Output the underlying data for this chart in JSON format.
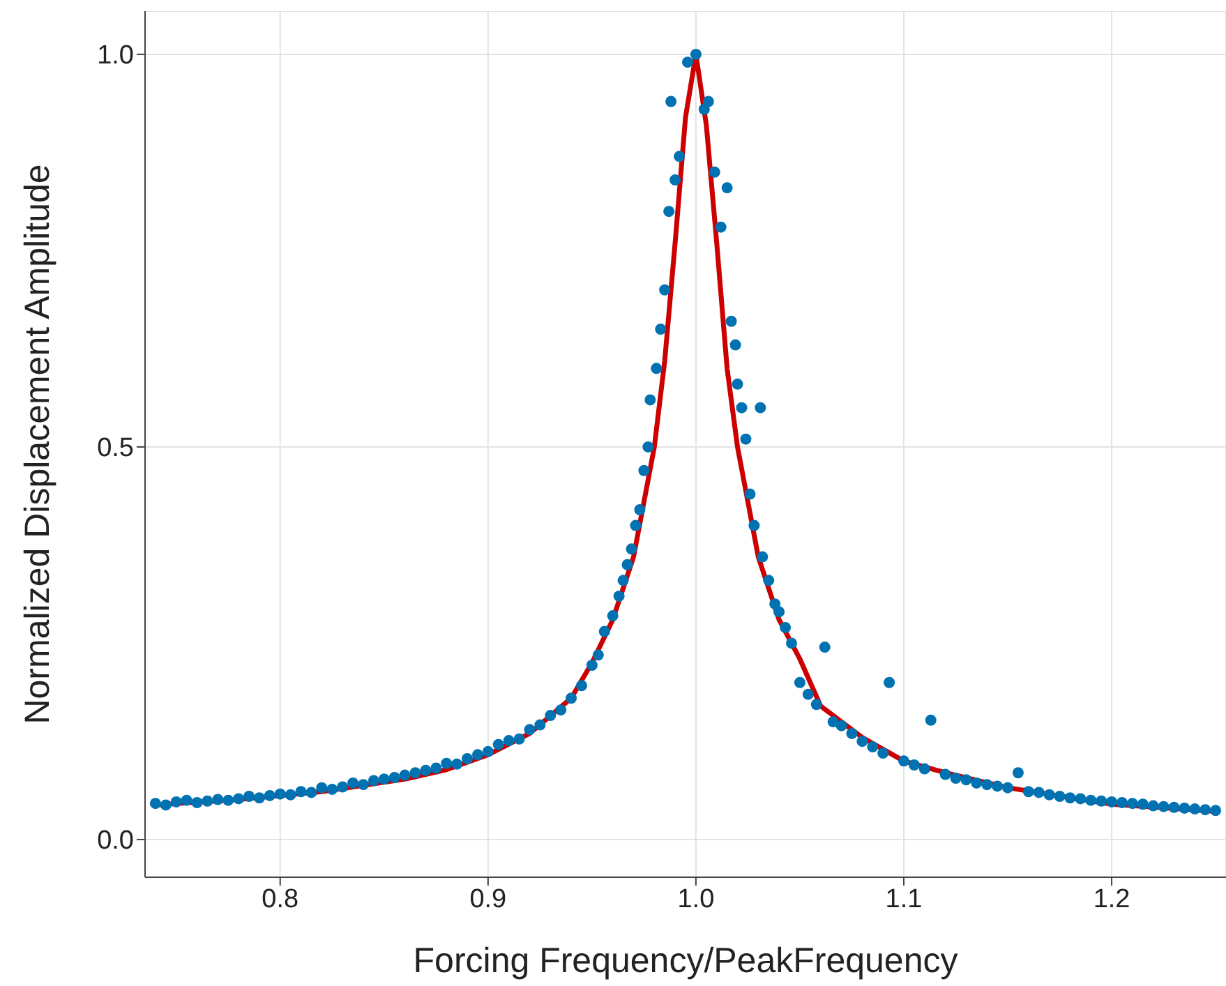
{
  "chart_data": {
    "type": "scatter",
    "xlabel": "Forcing Frequency/PeakFrequency",
    "ylabel": "Normalized Displacement Amplitude",
    "xlim": [
      0.735,
      1.255
    ],
    "ylim": [
      -0.048,
      1.055
    ],
    "xticks": [
      0.8,
      0.9,
      {
        "value": 1.0,
        "label": "1.0"
      },
      1.1,
      1.2
    ],
    "yticks": [
      {
        "value": 0,
        "label": "0.0"
      },
      {
        "value": 0.5,
        "label": "0.5"
      },
      {
        "value": 1.0,
        "label": "1.0"
      }
    ],
    "grid": true,
    "marker": "circle",
    "series": [
      {
        "type": "scatter",
        "color": "#0072b2",
        "x": [
          0.74,
          0.745,
          0.75,
          0.755,
          0.76,
          0.765,
          0.77,
          0.775,
          0.78,
          0.785,
          0.79,
          0.795,
          0.8,
          0.805,
          0.81,
          0.815,
          0.82,
          0.825,
          0.83,
          0.835,
          0.84,
          0.845,
          0.85,
          0.855,
          0.86,
          0.865,
          0.87,
          0.875,
          0.88,
          0.885,
          0.89,
          0.895,
          0.9,
          0.905,
          0.91,
          0.915,
          0.92,
          0.925,
          0.93,
          0.935,
          0.94,
          0.945,
          0.95,
          0.953,
          0.956,
          0.96,
          0.963,
          0.965,
          0.967,
          0.969,
          0.971,
          0.973,
          0.975,
          0.977,
          0.978,
          0.981,
          0.983,
          0.985,
          0.987,
          0.988,
          0.99,
          0.992,
          0.996,
          1.0,
          1.004,
          1.006,
          1.009,
          1.012,
          1.015,
          1.017,
          1.019,
          1.02,
          1.022,
          1.024,
          1.026,
          1.028,
          1.031,
          1.032,
          1.035,
          1.038,
          1.04,
          1.043,
          1.046,
          1.05,
          1.054,
          1.058,
          1.062,
          1.066,
          1.07,
          1.075,
          1.08,
          1.085,
          1.09,
          1.093,
          1.1,
          1.105,
          1.11,
          1.113,
          1.12,
          1.125,
          1.13,
          1.135,
          1.14,
          1.145,
          1.15,
          1.155,
          1.16,
          1.165,
          1.17,
          1.175,
          1.18,
          1.185,
          1.19,
          1.195,
          1.2,
          1.205,
          1.21,
          1.215,
          1.22,
          1.225,
          1.23,
          1.235,
          1.24,
          1.245,
          1.25
        ],
        "values": [
          0.046,
          0.044,
          0.048,
          0.05,
          0.047,
          0.049,
          0.051,
          0.05,
          0.052,
          0.055,
          0.053,
          0.056,
          0.058,
          0.057,
          0.061,
          0.06,
          0.066,
          0.064,
          0.067,
          0.072,
          0.07,
          0.075,
          0.077,
          0.079,
          0.082,
          0.085,
          0.088,
          0.091,
          0.097,
          0.096,
          0.103,
          0.108,
          0.112,
          0.121,
          0.126,
          0.128,
          0.14,
          0.146,
          0.158,
          0.165,
          0.18,
          0.196,
          0.222,
          0.235,
          0.265,
          0.285,
          0.31,
          0.33,
          0.35,
          0.37,
          0.4,
          0.42,
          0.47,
          0.5,
          0.56,
          0.6,
          0.65,
          0.7,
          0.8,
          0.94,
          0.84,
          0.87,
          0.99,
          1.0,
          0.93,
          0.94,
          0.85,
          0.78,
          0.83,
          0.66,
          0.63,
          0.58,
          0.55,
          0.51,
          0.44,
          0.4,
          0.55,
          0.36,
          0.33,
          0.3,
          0.29,
          0.27,
          0.25,
          0.2,
          0.185,
          0.172,
          0.245,
          0.15,
          0.145,
          0.135,
          0.125,
          0.118,
          0.11,
          0.2,
          0.1,
          0.095,
          0.09,
          0.152,
          0.083,
          0.078,
          0.076,
          0.072,
          0.07,
          0.068,
          0.066,
          0.085,
          0.061,
          0.06,
          0.057,
          0.055,
          0.053,
          0.052,
          0.05,
          0.049,
          0.048,
          0.047,
          0.046,
          0.045,
          0.043,
          0.042,
          0.041,
          0.04,
          0.039,
          0.038,
          0.037
        ]
      },
      {
        "type": "line",
        "color": "#cc0000",
        "marker": "none",
        "line_style": "solid",
        "x": [
          0.74,
          0.78,
          0.82,
          0.86,
          0.88,
          0.9,
          0.92,
          0.94,
          0.95,
          0.96,
          0.97,
          0.98,
          0.985,
          0.99,
          0.995,
          1.0,
          1.005,
          1.01,
          1.015,
          1.02,
          1.03,
          1.04,
          1.05,
          1.06,
          1.08,
          1.1,
          1.12,
          1.15,
          1.2,
          1.25
        ],
        "values": [
          0.044,
          0.051,
          0.061,
          0.077,
          0.089,
          0.108,
          0.135,
          0.18,
          0.225,
          0.28,
          0.36,
          0.5,
          0.61,
          0.76,
          0.92,
          1.0,
          0.91,
          0.76,
          0.6,
          0.5,
          0.36,
          0.28,
          0.23,
          0.17,
          0.13,
          0.1,
          0.085,
          0.066,
          0.045,
          0.036
        ]
      }
    ]
  }
}
